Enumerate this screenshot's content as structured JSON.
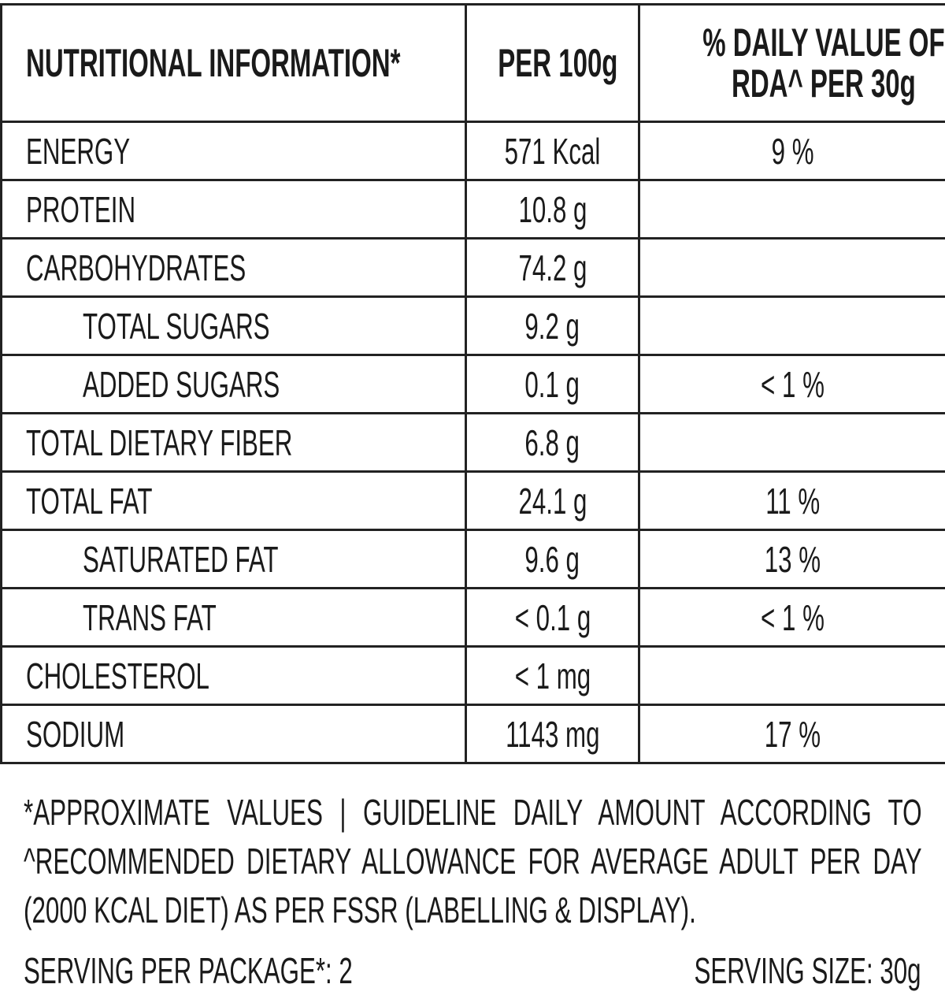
{
  "header": {
    "col1": "NUTRITIONAL INFORMATION*",
    "col2": "PER 100g",
    "col3_line1": "% DAILY VALUE OF",
    "col3_line2": "RDA^ PER 30g"
  },
  "rows": [
    {
      "name": "ENERGY",
      "per100": "571 Kcal",
      "dv": "9 %",
      "indent": false
    },
    {
      "name": "PROTEIN",
      "per100": "10.8 g",
      "dv": "",
      "indent": false
    },
    {
      "name": "CARBOHYDRATES",
      "per100": "74.2 g",
      "dv": "",
      "indent": false
    },
    {
      "name": "TOTAL SUGARS",
      "per100": "9.2 g",
      "dv": "",
      "indent": true
    },
    {
      "name": "ADDED SUGARS",
      "per100": "0.1 g",
      "dv": "< 1 %",
      "indent": true
    },
    {
      "name": "TOTAL DIETARY FIBER",
      "per100": "6.8 g",
      "dv": "",
      "indent": false
    },
    {
      "name": "TOTAL FAT",
      "per100": "24.1 g",
      "dv": "11 %",
      "indent": false
    },
    {
      "name": "SATURATED FAT",
      "per100": "9.6 g",
      "dv": "13 %",
      "indent": true
    },
    {
      "name": "TRANS FAT",
      "per100": "< 0.1 g",
      "dv": "< 1 %",
      "indent": true
    },
    {
      "name": "CHOLESTEROL",
      "per100": "< 1 mg",
      "dv": "",
      "indent": false
    },
    {
      "name": "SODIUM",
      "per100": "1143 mg",
      "dv": "17 %",
      "indent": false
    }
  ],
  "footnote": [
    "*APPROXIMATE VALUES | GUIDELINE DAILY AMOUNT ACCORDING TO",
    "^RECOMMENDED DIETARY ALLOWANCE FOR AVERAGE ADULT PER DAY",
    "(2000 KCAL DIET) AS PER FSSR (LABELLING & DISPLAY)."
  ],
  "serving_per_package": "SERVING PER PACKAGE*: 2",
  "serving_size": "SERVING SIZE: 30g"
}
